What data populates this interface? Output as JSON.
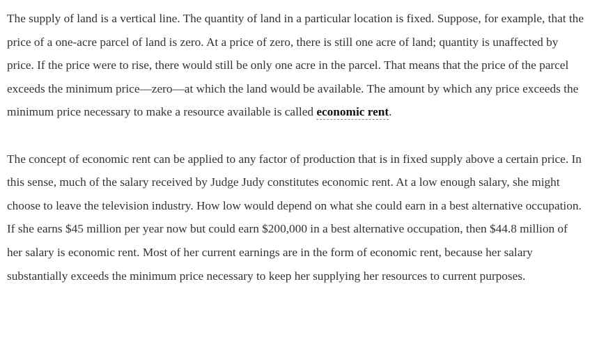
{
  "paragraphs": [
    {
      "text": "The supply of land is a vertical line. The quantity of land in a particular location is fixed. Suppose, for example, that the price of a one-acre parcel of land is zero. At a price of zero, there is still one acre of land; quantity is unaffected by price. If the price were to rise, there would still be only one acre in the parcel. That means that the price of the parcel exceeds the minimum price—zero—at which the land would be available. The amount by which any price exceeds the minimum price necessary to make a resource available is called ",
      "term": "economic rent",
      "after": "."
    },
    {
      "text": "The concept of economic rent can be applied to any factor of production that is in fixed supply above a certain price. In this sense, much of the salary received by Judge Judy constitutes economic rent. At a low enough salary, she might choose to leave the television industry. How low would depend on what she could earn in a best alternative occupation. If she earns $45 million per year now but could earn $200,000 in a best alternative occupation, then $44.8 million of her salary is economic rent. Most of her current earnings are in the form of economic rent, because her salary substantially exceeds the minimum price necessary to keep her supplying her resources to current purposes."
    }
  ]
}
